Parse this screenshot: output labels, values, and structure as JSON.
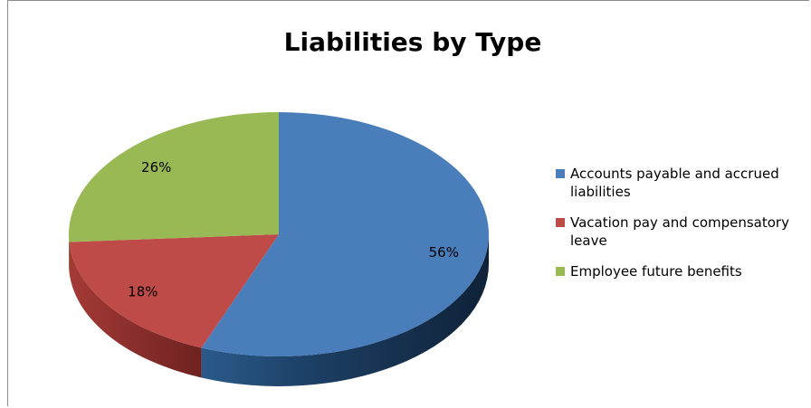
{
  "chart_data": {
    "type": "pie",
    "title": "Liabilities by Type",
    "slices": [
      {
        "label": "Accounts payable and accrued liabilities",
        "value": 56,
        "display": "56%",
        "color": "#4a7ebb"
      },
      {
        "label": "Vacation pay and compensatory leave",
        "value": 18,
        "display": "18%",
        "color": "#be4b48"
      },
      {
        "label": "Employee future benefits",
        "value": 26,
        "display": "26%",
        "color": "#98b954"
      }
    ],
    "legend_position": "right",
    "style": "3d"
  }
}
